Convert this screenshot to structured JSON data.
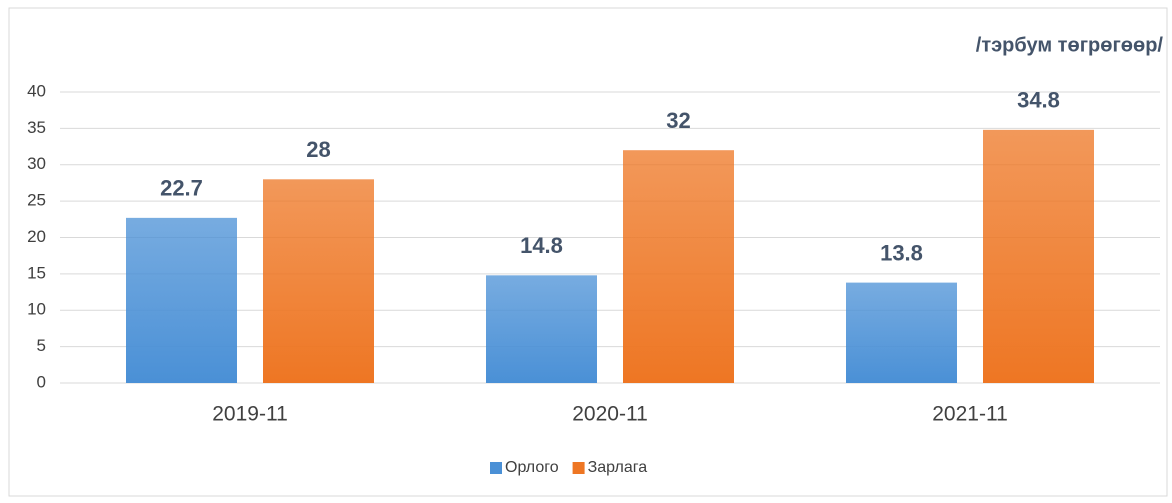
{
  "chart_data": {
    "type": "bar",
    "subtitle": "/тэрбум төгрөгөөр/",
    "categories": [
      "2019-11",
      "2020-11",
      "2021-11"
    ],
    "series": [
      {
        "name": "Орлого",
        "color": "#4a90d6",
        "values": [
          22.7,
          14.8,
          13.8
        ]
      },
      {
        "name": "Зарлага",
        "color": "#ee7623",
        "values": [
          28,
          32,
          34.8
        ]
      }
    ],
    "ylim": [
      0,
      40
    ],
    "yticks": [
      0,
      5,
      10,
      15,
      20,
      25,
      30,
      35,
      40
    ],
    "grid": true,
    "legend": "bottom"
  }
}
